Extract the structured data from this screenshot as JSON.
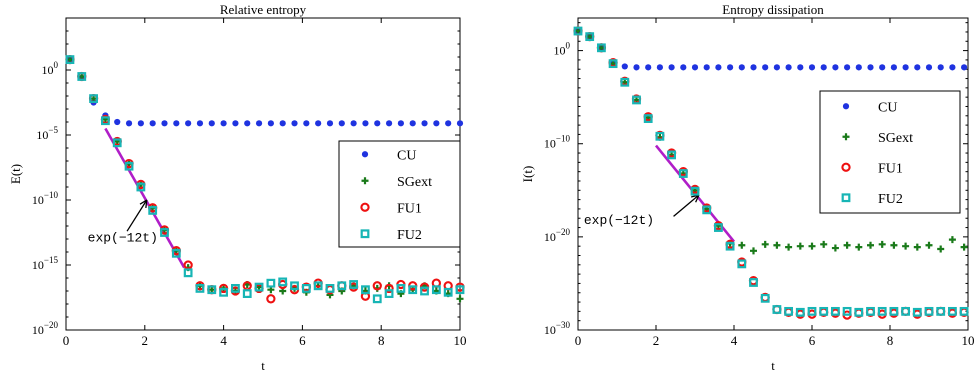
{
  "chart_data": [
    {
      "type": "scatter",
      "title": "Relative entropy",
      "xlabel": "t",
      "ylabel": "E(t)",
      "xlim": [
        0,
        10
      ],
      "ylim_log10": [
        -20,
        4
      ],
      "yscale": "log",
      "grid": false,
      "legend_position": "right",
      "x_ticks": [
        {
          "v": 0,
          "label": "0"
        },
        {
          "v": 2,
          "label": "2"
        },
        {
          "v": 4,
          "label": "4"
        },
        {
          "v": 6,
          "label": "6"
        },
        {
          "v": 8,
          "label": "8"
        },
        {
          "v": 10,
          "label": "10"
        }
      ],
      "y_ticks": [
        {
          "e": 0,
          "base": "10",
          "exp": "0"
        },
        {
          "e": -5,
          "base": "10",
          "exp": "−5"
        },
        {
          "e": -10,
          "base": "10",
          "exp": "−10"
        },
        {
          "e": -15,
          "base": "10",
          "exp": "−15"
        },
        {
          "e": -20,
          "base": "10",
          "exp": "−20"
        }
      ],
      "annotation": {
        "text": "exp(−12t)",
        "line": [
          [
            1.0,
            -4.5
          ],
          [
            3.0,
            -15.2
          ]
        ],
        "arrow_to": [
          2.05,
          -10.0
        ]
      },
      "series": [
        {
          "name": "CU",
          "marker": "dot",
          "color": "#1f33e0",
          "x": [
            0.1,
            0.4,
            0.7,
            1.0,
            1.3,
            1.6,
            1.9,
            2.2,
            2.5,
            2.8,
            3.1,
            3.4,
            3.7,
            4.0,
            4.3,
            4.6,
            4.9,
            5.2,
            5.5,
            5.8,
            6.1,
            6.4,
            6.7,
            7.0,
            7.3,
            7.6,
            7.9,
            8.2,
            8.5,
            8.8,
            9.1,
            9.4,
            9.7,
            10.0
          ],
          "log10y": [
            0.8,
            -0.6,
            -2.5,
            -3.5,
            -4.0,
            -4.1,
            -4.1,
            -4.1,
            -4.1,
            -4.1,
            -4.1,
            -4.1,
            -4.1,
            -4.1,
            -4.1,
            -4.1,
            -4.1,
            -4.1,
            -4.1,
            -4.1,
            -4.1,
            -4.1,
            -4.1,
            -4.1,
            -4.1,
            -4.1,
            -4.1,
            -4.1,
            -4.1,
            -4.1,
            -4.1,
            -4.1,
            -4.1,
            -4.1
          ]
        },
        {
          "name": "SGext",
          "marker": "plus",
          "color": "#1a7a1a",
          "x": [
            0.1,
            0.4,
            0.7,
            1.0,
            1.3,
            1.6,
            1.9,
            2.2,
            2.5,
            2.8,
            3.1,
            3.4,
            3.7,
            4.0,
            4.3,
            4.6,
            4.9,
            5.2,
            5.5,
            5.8,
            6.1,
            6.4,
            6.7,
            7.0,
            7.3,
            7.6,
            7.9,
            8.2,
            8.5,
            8.8,
            9.1,
            9.4,
            9.7,
            10.0
          ],
          "log10y": [
            0.8,
            -0.5,
            -2.2,
            -3.8,
            -5.5,
            -7.2,
            -8.8,
            -10.6,
            -12.3,
            -13.9,
            -15.2,
            -16.6,
            -16.9,
            -16.8,
            -17.0,
            -16.5,
            -16.7,
            -16.9,
            -17.0,
            -16.8,
            -17.1,
            -16.6,
            -17.3,
            -17.0,
            -16.6,
            -17.0,
            -16.8,
            -16.6,
            -17.2,
            -16.9,
            -16.6,
            -17.0,
            -17.2,
            -17.6
          ]
        },
        {
          "name": "FU1",
          "marker": "circle",
          "color": "#ee1111",
          "x": [
            0.1,
            0.4,
            0.7,
            1.0,
            1.3,
            1.6,
            1.9,
            2.2,
            2.5,
            2.8,
            3.1,
            3.4,
            3.7,
            4.0,
            4.3,
            4.6,
            4.9,
            5.2,
            5.5,
            5.8,
            6.1,
            6.4,
            6.7,
            7.0,
            7.3,
            7.6,
            7.9,
            8.2,
            8.5,
            8.8,
            9.1,
            9.4,
            9.7,
            10.0
          ],
          "log10y": [
            0.8,
            -0.5,
            -2.2,
            -3.8,
            -5.5,
            -7.2,
            -8.8,
            -10.6,
            -12.3,
            -13.9,
            -15.0,
            -16.6,
            -16.9,
            -16.8,
            -17.0,
            -16.6,
            -16.8,
            -17.6,
            -16.5,
            -16.9,
            -16.7,
            -16.4,
            -16.9,
            -16.6,
            -16.7,
            -17.4,
            -16.6,
            -16.8,
            -16.5,
            -16.6,
            -16.7,
            -16.4,
            -16.6,
            -16.7
          ]
        },
        {
          "name": "FU2",
          "marker": "square",
          "color": "#17b5b5",
          "x": [
            0.1,
            0.4,
            0.7,
            1.0,
            1.3,
            1.6,
            1.9,
            2.2,
            2.5,
            2.8,
            3.1,
            3.4,
            3.7,
            4.0,
            4.3,
            4.6,
            4.9,
            5.2,
            5.5,
            5.8,
            6.1,
            6.4,
            6.7,
            7.0,
            7.3,
            7.6,
            7.9,
            8.2,
            8.5,
            8.8,
            9.1,
            9.4,
            9.7,
            10.0
          ],
          "log10y": [
            0.8,
            -0.5,
            -2.2,
            -3.9,
            -5.6,
            -7.4,
            -9.0,
            -10.8,
            -12.5,
            -14.1,
            -15.6,
            -16.8,
            -16.9,
            -17.1,
            -16.8,
            -17.2,
            -16.7,
            -16.4,
            -16.3,
            -16.6,
            -16.8,
            -16.6,
            -16.8,
            -16.6,
            -16.5,
            -16.9,
            -17.6,
            -17.2,
            -16.8,
            -16.9,
            -17.0,
            -16.9,
            -17.1,
            -16.9
          ]
        }
      ]
    },
    {
      "type": "scatter",
      "title": "Entropy dissipation",
      "xlabel": "t",
      "ylabel": "I(t)",
      "xlim": [
        0,
        10
      ],
      "ylim_log10": [
        -30,
        3.5
      ],
      "yscale": "log",
      "grid": false,
      "legend_position": "right",
      "x_ticks": [
        {
          "v": 0,
          "label": "0"
        },
        {
          "v": 2,
          "label": "2"
        },
        {
          "v": 4,
          "label": "4"
        },
        {
          "v": 6,
          "label": "6"
        },
        {
          "v": 8,
          "label": "8"
        },
        {
          "v": 10,
          "label": "10"
        }
      ],
      "y_ticks": [
        {
          "e": 0,
          "base": "10",
          "exp": "0"
        },
        {
          "e": -10,
          "base": "10",
          "exp": "−10"
        },
        {
          "e": -20,
          "base": "10",
          "exp": "−20"
        },
        {
          "e": -30,
          "base": "10",
          "exp": "−30"
        }
      ],
      "annotation": {
        "text": "exp(−12t)",
        "line": [
          [
            2.0,
            -10.2
          ],
          [
            4.0,
            -20.5
          ]
        ],
        "arrow_to": [
          3.1,
          -15.5
        ]
      },
      "series": [
        {
          "name": "CU",
          "marker": "dot",
          "color": "#1f33e0",
          "x": [
            0.0,
            0.3,
            0.6,
            0.9,
            1.2,
            1.5,
            1.8,
            2.1,
            2.4,
            2.7,
            3.0,
            3.3,
            3.6,
            3.9,
            4.2,
            4.5,
            4.8,
            5.1,
            5.4,
            5.7,
            6.0,
            6.3,
            6.6,
            6.9,
            7.2,
            7.5,
            7.8,
            8.1,
            8.4,
            8.7,
            9.0,
            9.3,
            9.6,
            9.9
          ],
          "log10y": [
            2.1,
            1.5,
            0.3,
            -1.4,
            -1.7,
            -1.8,
            -1.8,
            -1.8,
            -1.8,
            -1.8,
            -1.8,
            -1.8,
            -1.8,
            -1.8,
            -1.8,
            -1.8,
            -1.8,
            -1.8,
            -1.8,
            -1.8,
            -1.8,
            -1.8,
            -1.8,
            -1.8,
            -1.8,
            -1.8,
            -1.8,
            -1.8,
            -1.8,
            -1.8,
            -1.8,
            -1.8,
            -1.8,
            -1.8
          ]
        },
        {
          "name": "SGext",
          "marker": "plus",
          "color": "#1a7a1a",
          "x": [
            0.0,
            0.3,
            0.6,
            0.9,
            1.2,
            1.5,
            1.8,
            2.1,
            2.4,
            2.7,
            3.0,
            3.3,
            3.6,
            3.9,
            4.2,
            4.5,
            4.8,
            5.1,
            5.4,
            5.7,
            6.0,
            6.3,
            6.6,
            6.9,
            7.2,
            7.5,
            7.8,
            8.1,
            8.4,
            8.7,
            9.0,
            9.3,
            9.6,
            9.9
          ],
          "log10y": [
            2.1,
            1.5,
            0.3,
            -1.4,
            -3.4,
            -5.3,
            -7.2,
            -9.3,
            -11.2,
            -13.2,
            -15.0,
            -17.0,
            -18.8,
            -20.7,
            -20.9,
            -21.5,
            -20.8,
            -20.9,
            -21.1,
            -21.0,
            -21.0,
            -20.8,
            -21.2,
            -20.9,
            -21.1,
            -20.9,
            -20.8,
            -20.9,
            -21.0,
            -21.1,
            -20.9,
            -21.3,
            -20.3,
            -21.1
          ]
        },
        {
          "name": "FU1",
          "marker": "circle",
          "color": "#ee1111",
          "x": [
            0.0,
            0.3,
            0.6,
            0.9,
            1.2,
            1.5,
            1.8,
            2.1,
            2.4,
            2.7,
            3.0,
            3.3,
            3.6,
            3.9,
            4.2,
            4.5,
            4.8,
            5.1,
            5.4,
            5.7,
            6.0,
            6.3,
            6.6,
            6.9,
            7.2,
            7.5,
            7.8,
            8.1,
            8.4,
            8.7,
            9.0,
            9.3,
            9.6,
            9.9
          ],
          "log10y": [
            2.1,
            1.5,
            0.3,
            -1.3,
            -3.3,
            -5.2,
            -7.1,
            -9.1,
            -11.0,
            -13.0,
            -14.9,
            -16.9,
            -18.8,
            -20.8,
            -22.7,
            -24.7,
            -26.5,
            -27.8,
            -28.1,
            -28.3,
            -28.3,
            -28.1,
            -28.2,
            -28.4,
            -28.2,
            -28.1,
            -28.3,
            -28.2,
            -28.0,
            -28.3,
            -28.1,
            -28.0,
            -28.2,
            -28.1
          ]
        },
        {
          "name": "FU2",
          "marker": "square",
          "color": "#17b5b5",
          "x": [
            0.0,
            0.3,
            0.6,
            0.9,
            1.2,
            1.5,
            1.8,
            2.1,
            2.4,
            2.7,
            3.0,
            3.3,
            3.6,
            3.9,
            4.2,
            4.5,
            4.8,
            5.1,
            5.4,
            5.7,
            6.0,
            6.3,
            6.6,
            6.9,
            7.2,
            7.5,
            7.8,
            8.1,
            8.4,
            8.7,
            9.0,
            9.3,
            9.6,
            9.9
          ],
          "log10y": [
            2.1,
            1.5,
            0.3,
            -1.4,
            -3.4,
            -5.3,
            -7.3,
            -9.2,
            -11.2,
            -13.2,
            -15.1,
            -17.1,
            -19.0,
            -21.0,
            -22.9,
            -24.9,
            -26.6,
            -27.8,
            -28.0,
            -28.1,
            -28.0,
            -28.0,
            -28.0,
            -28.0,
            -28.1,
            -28.0,
            -28.0,
            -28.0,
            -28.0,
            -28.1,
            -28.0,
            -28.0,
            -28.0,
            -28.0
          ]
        }
      ]
    }
  ]
}
